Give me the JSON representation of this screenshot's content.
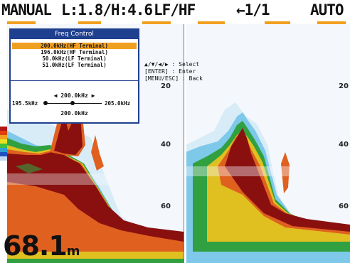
{
  "header": {
    "mode": "MANUAL",
    "range": "L:1.8/H:4.6",
    "freq_pair": "LF/HF",
    "page": "←1/1",
    "gain_mode": "AUTO"
  },
  "scale": {
    "left": [
      "20",
      "40",
      "60"
    ],
    "right": [
      "20",
      "40",
      "60"
    ]
  },
  "depth_readout": {
    "value": "68.1",
    "unit": "m"
  },
  "help": [
    {
      "key": "▲/▼/◀/▶",
      "action": ": Select"
    },
    {
      "key": "[ENTER]",
      "action": ": Enter"
    },
    {
      "key": "[MENU/ESC]",
      "action": ": Back"
    }
  ],
  "freq_dialog": {
    "title": "Freq Control",
    "items": [
      "200.0kHz(HF Terminal)",
      "196.0kHz(HF Terminal)",
      "50.0kHz(LF Terminal)",
      "51.0kHz(LF Terminal)"
    ],
    "selected_index": 0,
    "frequency": "◀ 200.0kHz ▶",
    "min": "195.5kHz",
    "max": "205.0kHz",
    "current": "200.0kHz"
  },
  "colors": {
    "dialog_border": "#1f3f8f",
    "highlight": "#f0a020"
  }
}
